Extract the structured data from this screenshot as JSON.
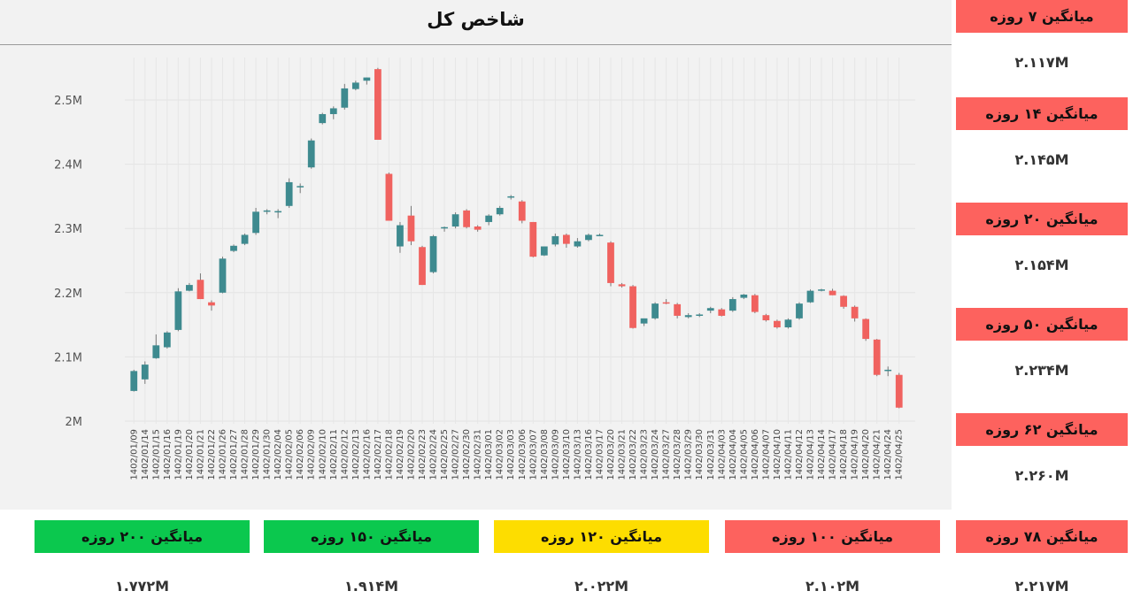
{
  "colors": {
    "up": "#3e8a8f",
    "down": "#f0625f",
    "red_card": "#fd625e",
    "green_card": "#0bc84e",
    "yellow_card": "#fddd00"
  },
  "side_cards": [
    {
      "label": "میانگین ۷ روزه",
      "value": "۲.۱۱۷M",
      "color": "red"
    },
    {
      "label": "میانگین ۱۴ روزه",
      "value": "۲.۱۴۵M",
      "color": "red"
    },
    {
      "label": "میانگین ۲۰ روزه",
      "value": "۲.۱۵۴M",
      "color": "red"
    },
    {
      "label": "میانگین ۵۰ روزه",
      "value": "۲.۲۳۴M",
      "color": "red"
    },
    {
      "label": "میانگین ۶۲ روزه",
      "value": "۲.۲۶۰M",
      "color": "red"
    }
  ],
  "bottom_cards": [
    {
      "label": "میانگین ۲۰۰ روزه",
      "value": "۱.۷۷۲M",
      "color": "green"
    },
    {
      "label": "میانگین ۱۵۰ روزه",
      "value": "۱.۹۱۴M",
      "color": "green"
    },
    {
      "label": "میانگین ۱۲۰ روزه",
      "value": "۲.۰۲۲M",
      "color": "yellow"
    },
    {
      "label": "میانگین ۱۰۰ روزه",
      "value": "۲.۱۰۲M",
      "color": "red"
    },
    {
      "label": "میانگین ۷۸ روزه",
      "value": "۲.۲۱۷M",
      "color": "red"
    }
  ],
  "chart_data": {
    "type": "candlestick",
    "title": "شاخص کل",
    "ylim": [
      1.98,
      2.56
    ],
    "y_ticks": [
      2.0,
      2.1,
      2.2,
      2.3,
      2.4,
      2.5
    ],
    "y_tick_labels": [
      "2M",
      "2.1M",
      "2.2M",
      "2.3M",
      "2.4M",
      "2.5M"
    ],
    "grid": true,
    "categories": [
      "1402/01/09",
      "1402/01/14",
      "1402/01/15",
      "1402/01/16",
      "1402/01/19",
      "1402/01/20",
      "1402/01/21",
      "1402/01/22",
      "1402/01/26",
      "1402/01/27",
      "1402/01/28",
      "1402/01/29",
      "1402/01/30",
      "1402/02/04",
      "1402/02/05",
      "1402/02/06",
      "1402/02/09",
      "1402/02/10",
      "1402/02/11",
      "1402/02/12",
      "1402/02/13",
      "1402/02/16",
      "1402/02/17",
      "1402/02/18",
      "1402/02/19",
      "1402/02/20",
      "1402/02/23",
      "1402/02/24",
      "1402/02/25",
      "1402/02/27",
      "1402/02/30",
      "1402/02/31",
      "1402/03/01",
      "1402/03/02",
      "1402/03/03",
      "1402/03/06",
      "1402/03/07",
      "1402/03/08",
      "1402/03/09",
      "1402/03/10",
      "1402/03/13",
      "1402/03/16",
      "1402/03/17",
      "1402/03/20",
      "1402/03/21",
      "1402/03/22",
      "1402/03/23",
      "1402/03/24",
      "1402/03/27",
      "1402/03/28",
      "1402/03/29",
      "1402/03/30",
      "1402/03/31",
      "1402/04/03",
      "1402/04/04",
      "1402/04/05",
      "1402/04/06",
      "1402/04/07",
      "1402/04/10",
      "1402/04/11",
      "1402/04/12",
      "1402/04/13",
      "1402/04/14",
      "1402/04/17",
      "1402/04/18",
      "1402/04/19",
      "1402/04/20",
      "1402/04/21",
      "1402/04/24",
      "1402/04/25"
    ],
    "open": [
      2.047,
      2.065,
      2.098,
      2.115,
      2.142,
      2.203,
      2.22,
      2.185,
      2.2,
      2.265,
      2.276,
      2.293,
      2.326,
      2.325,
      2.335,
      2.365,
      2.395,
      2.464,
      2.478,
      2.488,
      2.517,
      2.53,
      2.548,
      2.385,
      2.272,
      2.32,
      2.271,
      2.232,
      2.3,
      2.303,
      2.328,
      2.303,
      2.31,
      2.322,
      2.348,
      2.342,
      2.31,
      2.258,
      2.275,
      2.29,
      2.272,
      2.282,
      2.29,
      2.278,
      2.213,
      2.21,
      2.152,
      2.16,
      2.185,
      2.182,
      2.162,
      2.164,
      2.172,
      2.174,
      2.172,
      2.192,
      2.196,
      2.165,
      2.156,
      2.146,
      2.16,
      2.185,
      2.204,
      2.203,
      2.195,
      2.178,
      2.159,
      2.127,
      2.078,
      2.072
    ],
    "high": [
      2.08,
      2.093,
      2.135,
      2.14,
      2.207,
      2.215,
      2.23,
      2.188,
      2.256,
      2.275,
      2.292,
      2.332,
      2.33,
      2.33,
      2.378,
      2.37,
      2.44,
      2.48,
      2.49,
      2.525,
      2.53,
      2.535,
      2.55,
      2.387,
      2.31,
      2.335,
      2.273,
      2.29,
      2.303,
      2.325,
      2.33,
      2.305,
      2.322,
      2.335,
      2.352,
      2.344,
      2.31,
      2.27,
      2.292,
      2.292,
      2.285,
      2.292,
      2.292,
      2.28,
      2.215,
      2.212,
      2.158,
      2.185,
      2.19,
      2.184,
      2.168,
      2.168,
      2.178,
      2.176,
      2.193,
      2.198,
      2.198,
      2.167,
      2.158,
      2.16,
      2.185,
      2.205,
      2.206,
      2.206,
      2.196,
      2.18,
      2.16,
      2.128,
      2.085,
      2.075
    ],
    "low": [
      2.046,
      2.058,
      2.097,
      2.113,
      2.14,
      2.202,
      2.19,
      2.172,
      2.199,
      2.263,
      2.274,
      2.29,
      2.322,
      2.316,
      2.332,
      2.355,
      2.393,
      2.462,
      2.47,
      2.485,
      2.515,
      2.524,
      2.438,
      2.312,
      2.262,
      2.274,
      2.212,
      2.23,
      2.295,
      2.3,
      2.3,
      2.295,
      2.305,
      2.32,
      2.345,
      2.308,
      2.255,
      2.257,
      2.272,
      2.27,
      2.27,
      2.28,
      2.288,
      2.21,
      2.208,
      2.144,
      2.148,
      2.158,
      2.182,
      2.16,
      2.16,
      2.162,
      2.168,
      2.163,
      2.17,
      2.19,
      2.168,
      2.155,
      2.144,
      2.144,
      2.158,
      2.184,
      2.202,
      2.196,
      2.175,
      2.155,
      2.125,
      2.07,
      2.07,
      2.02
    ],
    "close": [
      2.078,
      2.088,
      2.118,
      2.138,
      2.202,
      2.212,
      2.19,
      2.18,
      2.253,
      2.273,
      2.29,
      2.326,
      2.328,
      2.327,
      2.372,
      2.366,
      2.437,
      2.478,
      2.487,
      2.518,
      2.527,
      2.535,
      2.438,
      2.312,
      2.305,
      2.28,
      2.212,
      2.288,
      2.302,
      2.322,
      2.302,
      2.298,
      2.32,
      2.332,
      2.35,
      2.312,
      2.256,
      2.272,
      2.288,
      2.276,
      2.28,
      2.29,
      2.29,
      2.215,
      2.21,
      2.145,
      2.16,
      2.183,
      2.183,
      2.164,
      2.165,
      2.166,
      2.176,
      2.164,
      2.19,
      2.197,
      2.17,
      2.157,
      2.146,
      2.158,
      2.183,
      2.203,
      2.205,
      2.196,
      2.178,
      2.16,
      2.128,
      2.072,
      2.08,
      2.021
    ]
  }
}
